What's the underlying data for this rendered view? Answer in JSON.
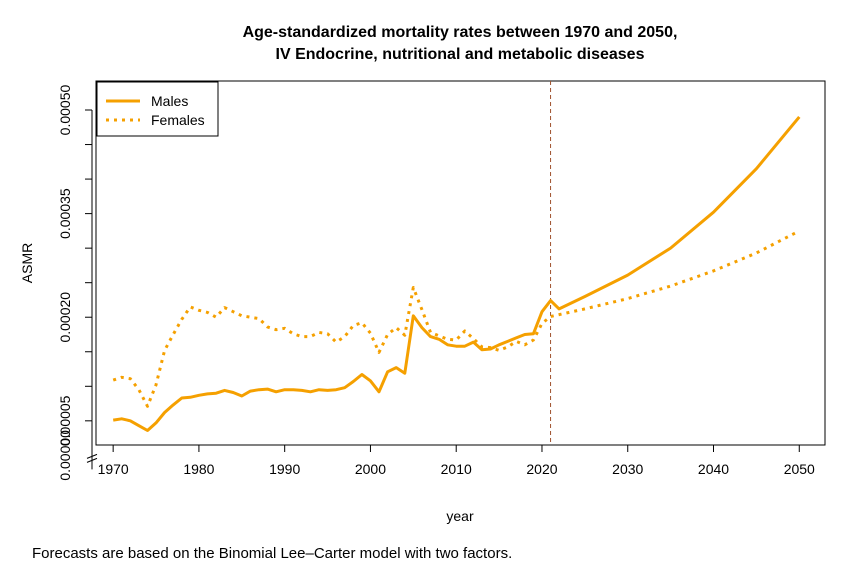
{
  "chart_data": {
    "type": "line",
    "title": "Age-standardized mortality rates between 1970 and 2050,",
    "subtitle": "IV Endocrine, nutritional and metabolic diseases",
    "xlabel": "year",
    "ylabel": "ASMR",
    "xlim": [
      1968,
      2053
    ],
    "ylim": [
      1.5e-05,
      0.000542
    ],
    "x_ticks": [
      "1970",
      "1980",
      "1990",
      "2000",
      "2010",
      "2020",
      "2030",
      "2040",
      "2050"
    ],
    "y_ticks": [
      "0.00000",
      "0.00005",
      "0.00020",
      "0.00035",
      "0.00050"
    ],
    "y_axis_break": true,
    "forecast_start_line": 2021,
    "line_color": "#F5A000",
    "forecast_line_color": "#A0522D",
    "legend": {
      "position": "top-left",
      "entries": [
        "Males",
        "Females"
      ]
    },
    "series": [
      {
        "name": "Males",
        "style": "solid",
        "x": [
          1970,
          1971,
          1972,
          1973,
          1974,
          1975,
          1976,
          1977,
          1978,
          1979,
          1980,
          1981,
          1982,
          1983,
          1984,
          1985,
          1986,
          1987,
          1988,
          1989,
          1990,
          1991,
          1992,
          1993,
          1994,
          1995,
          1996,
          1997,
          1998,
          1999,
          2000,
          2001,
          2002,
          2003,
          2004,
          2005,
          2006,
          2007,
          2008,
          2009,
          2010,
          2011,
          2012,
          2013,
          2014,
          2015,
          2016,
          2017,
          2018,
          2019,
          2020,
          2021,
          2022,
          2025,
          2030,
          2035,
          2040,
          2045,
          2050
        ],
        "y": [
          5.1e-05,
          5.3e-05,
          5e-05,
          4.3e-05,
          3.6e-05,
          4.7e-05,
          6.2e-05,
          7.3e-05,
          8.3e-05,
          8.4e-05,
          8.7e-05,
          8.9e-05,
          9e-05,
          9.4e-05,
          9.1e-05,
          8.6e-05,
          9.3e-05,
          9.5e-05,
          9.6e-05,
          9.2e-05,
          9.5e-05,
          9.5e-05,
          9.4e-05,
          9.2e-05,
          9.5e-05,
          9.4e-05,
          9.5e-05,
          9.8e-05,
          0.000107,
          0.000117,
          0.000108,
          9.2e-05,
          0.000121,
          0.000127,
          0.000119,
          0.000202,
          0.000185,
          0.000172,
          0.000168,
          0.00016,
          0.000158,
          0.000158,
          0.000164,
          0.000153,
          0.000154,
          0.00016,
          0.000165,
          0.00017,
          0.000175,
          0.000176,
          0.000208,
          0.000224,
          0.000212,
          0.00023,
          0.000261,
          0.0003,
          0.000352,
          0.000415,
          0.00049
        ]
      },
      {
        "name": "Females",
        "style": "dotted",
        "x": [
          1970,
          1971,
          1972,
          1973,
          1974,
          1975,
          1976,
          1977,
          1978,
          1979,
          1980,
          1981,
          1982,
          1983,
          1984,
          1985,
          1986,
          1987,
          1988,
          1989,
          1990,
          1991,
          1992,
          1993,
          1994,
          1995,
          1996,
          1997,
          1998,
          1999,
          2000,
          2001,
          2002,
          2003,
          2004,
          2005,
          2006,
          2007,
          2008,
          2009,
          2010,
          2011,
          2012,
          2013,
          2014,
          2015,
          2016,
          2017,
          2018,
          2019,
          2020,
          2021,
          2025,
          2030,
          2035,
          2040,
          2045,
          2050
        ],
        "y": [
          0.000109,
          0.000113,
          0.000111,
          9.5e-05,
          7.1e-05,
          0.000102,
          0.000152,
          0.000175,
          0.000197,
          0.000215,
          0.00021,
          0.000207,
          0.0002,
          0.000214,
          0.000208,
          0.000202,
          0.0002,
          0.000198,
          0.000186,
          0.000182,
          0.000184,
          0.000176,
          0.000172,
          0.000172,
          0.000178,
          0.000176,
          0.000164,
          0.000172,
          0.000188,
          0.000192,
          0.000177,
          0.000149,
          0.000175,
          0.000185,
          0.000174,
          0.000243,
          0.000211,
          0.000178,
          0.000173,
          0.000168,
          0.000167,
          0.00018,
          0.000169,
          0.000157,
          0.000156,
          0.000152,
          0.000157,
          0.000165,
          0.00016,
          0.000167,
          0.000191,
          0.000201,
          0.000212,
          0.000227,
          0.000245,
          0.000267,
          0.000293,
          0.000325
        ]
      }
    ]
  },
  "caption": "Forecasts are based on the Binomial Lee–Carter model with two factors."
}
